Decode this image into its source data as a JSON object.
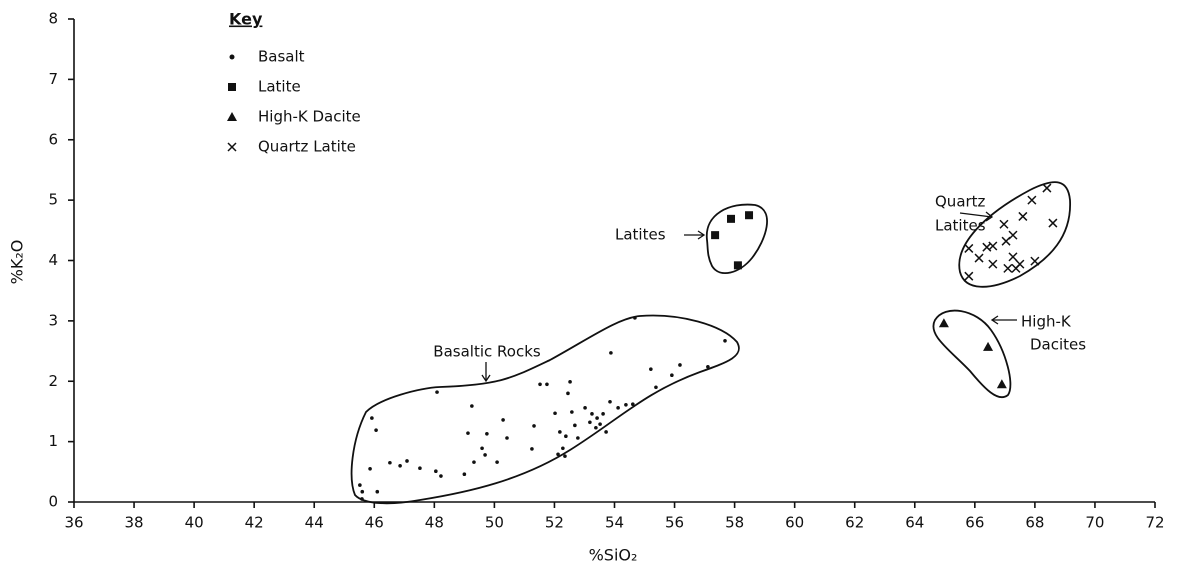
{
  "chart_data": {
    "type": "scatter",
    "x_label": "%SiO₂",
    "y_label": "%K₂O",
    "xlim": [
      36,
      72
    ],
    "ylim": [
      0,
      8
    ],
    "xticks": [
      36,
      38,
      40,
      42,
      44,
      46,
      48,
      50,
      52,
      54,
      56,
      58,
      60,
      62,
      64,
      66,
      68,
      70,
      72
    ],
    "yticks": [
      0,
      1,
      2,
      3,
      4,
      5,
      6,
      7,
      8
    ],
    "legend_title": "Key",
    "legend_position": "upper left",
    "annotations": [
      {
        "lines": [
          "Latites"
        ]
      },
      {
        "lines": [
          "Quartz",
          "Latites"
        ]
      },
      {
        "lines": [
          "High-K",
          "Dacites"
        ]
      },
      {
        "lines": [
          "Basaltic Rocks"
        ]
      }
    ],
    "series": [
      {
        "name": "Basalt",
        "color": "#111111",
        "marker": "dot",
        "x": [
          45.59,
          45.52,
          45.6,
          45.86,
          45.92,
          46.06,
          46.1,
          46.52,
          46.86,
          47.09,
          47.52,
          48.05,
          48.22,
          48.09,
          49.0,
          49.12,
          49.25,
          49.32,
          49.59,
          49.69,
          49.75,
          50.09,
          50.29,
          50.42,
          51.25,
          51.32,
          51.52,
          51.75,
          52.02,
          52.12,
          52.18,
          52.28,
          52.35,
          52.38,
          52.45,
          52.52,
          52.58,
          52.68,
          52.78,
          53.02,
          53.18,
          53.25,
          53.38,
          53.42,
          53.52,
          53.62,
          53.72,
          53.85,
          53.88,
          54.12,
          54.38,
          54.61,
          54.68,
          55.21,
          55.38,
          55.91,
          56.18,
          57.11,
          57.68
        ],
        "values": [
          0.05,
          0.28,
          0.17,
          0.55,
          1.39,
          1.19,
          0.17,
          0.65,
          0.6,
          0.68,
          0.56,
          0.51,
          0.43,
          1.82,
          0.46,
          1.14,
          1.59,
          0.66,
          0.89,
          0.78,
          1.13,
          0.66,
          1.36,
          1.06,
          0.88,
          1.26,
          1.95,
          1.95,
          1.47,
          0.79,
          1.16,
          0.89,
          0.76,
          1.09,
          1.8,
          1.99,
          1.49,
          1.27,
          1.06,
          1.56,
          1.32,
          1.46,
          1.23,
          1.39,
          1.29,
          1.46,
          1.16,
          1.66,
          2.47,
          1.56,
          1.61,
          1.62,
          3.05,
          2.2,
          1.9,
          2.1,
          2.27,
          2.24,
          2.67
        ]
      },
      {
        "name": "Latite",
        "color": "#111111",
        "marker": "square",
        "x": [
          57.35,
          57.88,
          58.48,
          58.11
        ],
        "values": [
          4.42,
          4.69,
          4.75,
          3.92
        ]
      },
      {
        "name": "High-K Dacite",
        "color": "#111111",
        "marker": "triangle",
        "x": [
          64.97,
          66.44,
          66.9
        ],
        "values": [
          2.96,
          2.57,
          1.95
        ]
      },
      {
        "name": "Quartz Latite",
        "color": "#111111",
        "marker": "x",
        "x": [
          65.8,
          66.14,
          66.4,
          66.6,
          66.6,
          66.97,
          67.04,
          67.27,
          67.6,
          67.9,
          68.4,
          68.6,
          67.1,
          67.27,
          67.37,
          67.5,
          68.0,
          65.8
        ],
        "values": [
          4.2,
          4.04,
          4.22,
          4.24,
          3.94,
          4.6,
          4.32,
          4.42,
          4.73,
          5.0,
          5.2,
          4.62,
          3.87,
          4.06,
          3.87,
          3.94,
          3.99,
          3.74
        ]
      }
    ]
  }
}
